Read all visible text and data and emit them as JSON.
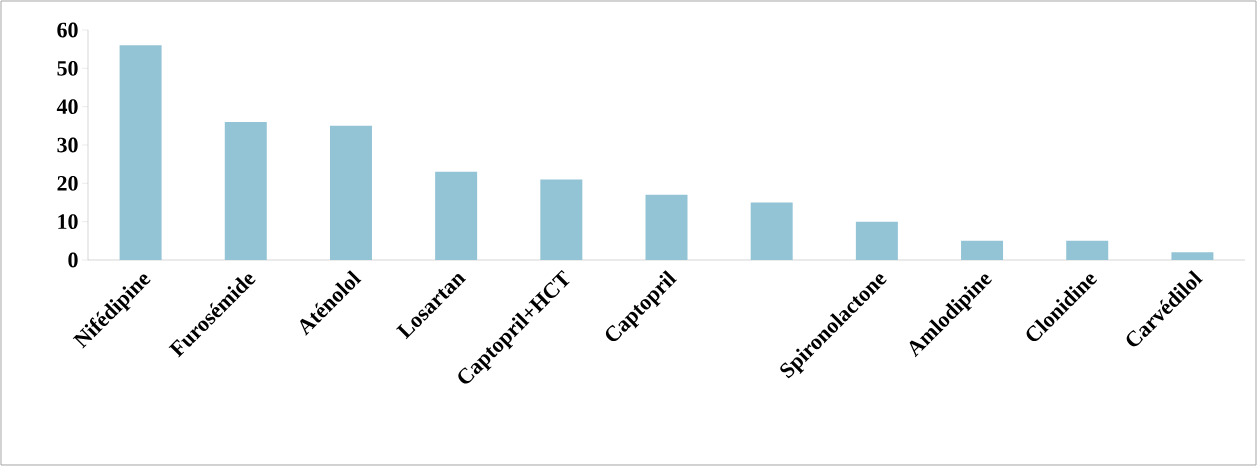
{
  "chart_data": {
    "type": "bar",
    "categories": [
      "Nifédipine",
      "Furosémide",
      "Aténolol",
      "Losartan",
      "Captopril+HCT",
      "Captopril",
      null,
      "Spironolactone",
      "Amlodipine",
      "Clonidine",
      "Carvédilol"
    ],
    "values": [
      56,
      36,
      35,
      23,
      21,
      17,
      15,
      10,
      5,
      5,
      2
    ],
    "color": "#93c4d5",
    "ylim": [
      0,
      60
    ],
    "yticks": [
      0,
      10,
      20,
      30,
      40,
      50,
      60
    ],
    "grid": false
  }
}
